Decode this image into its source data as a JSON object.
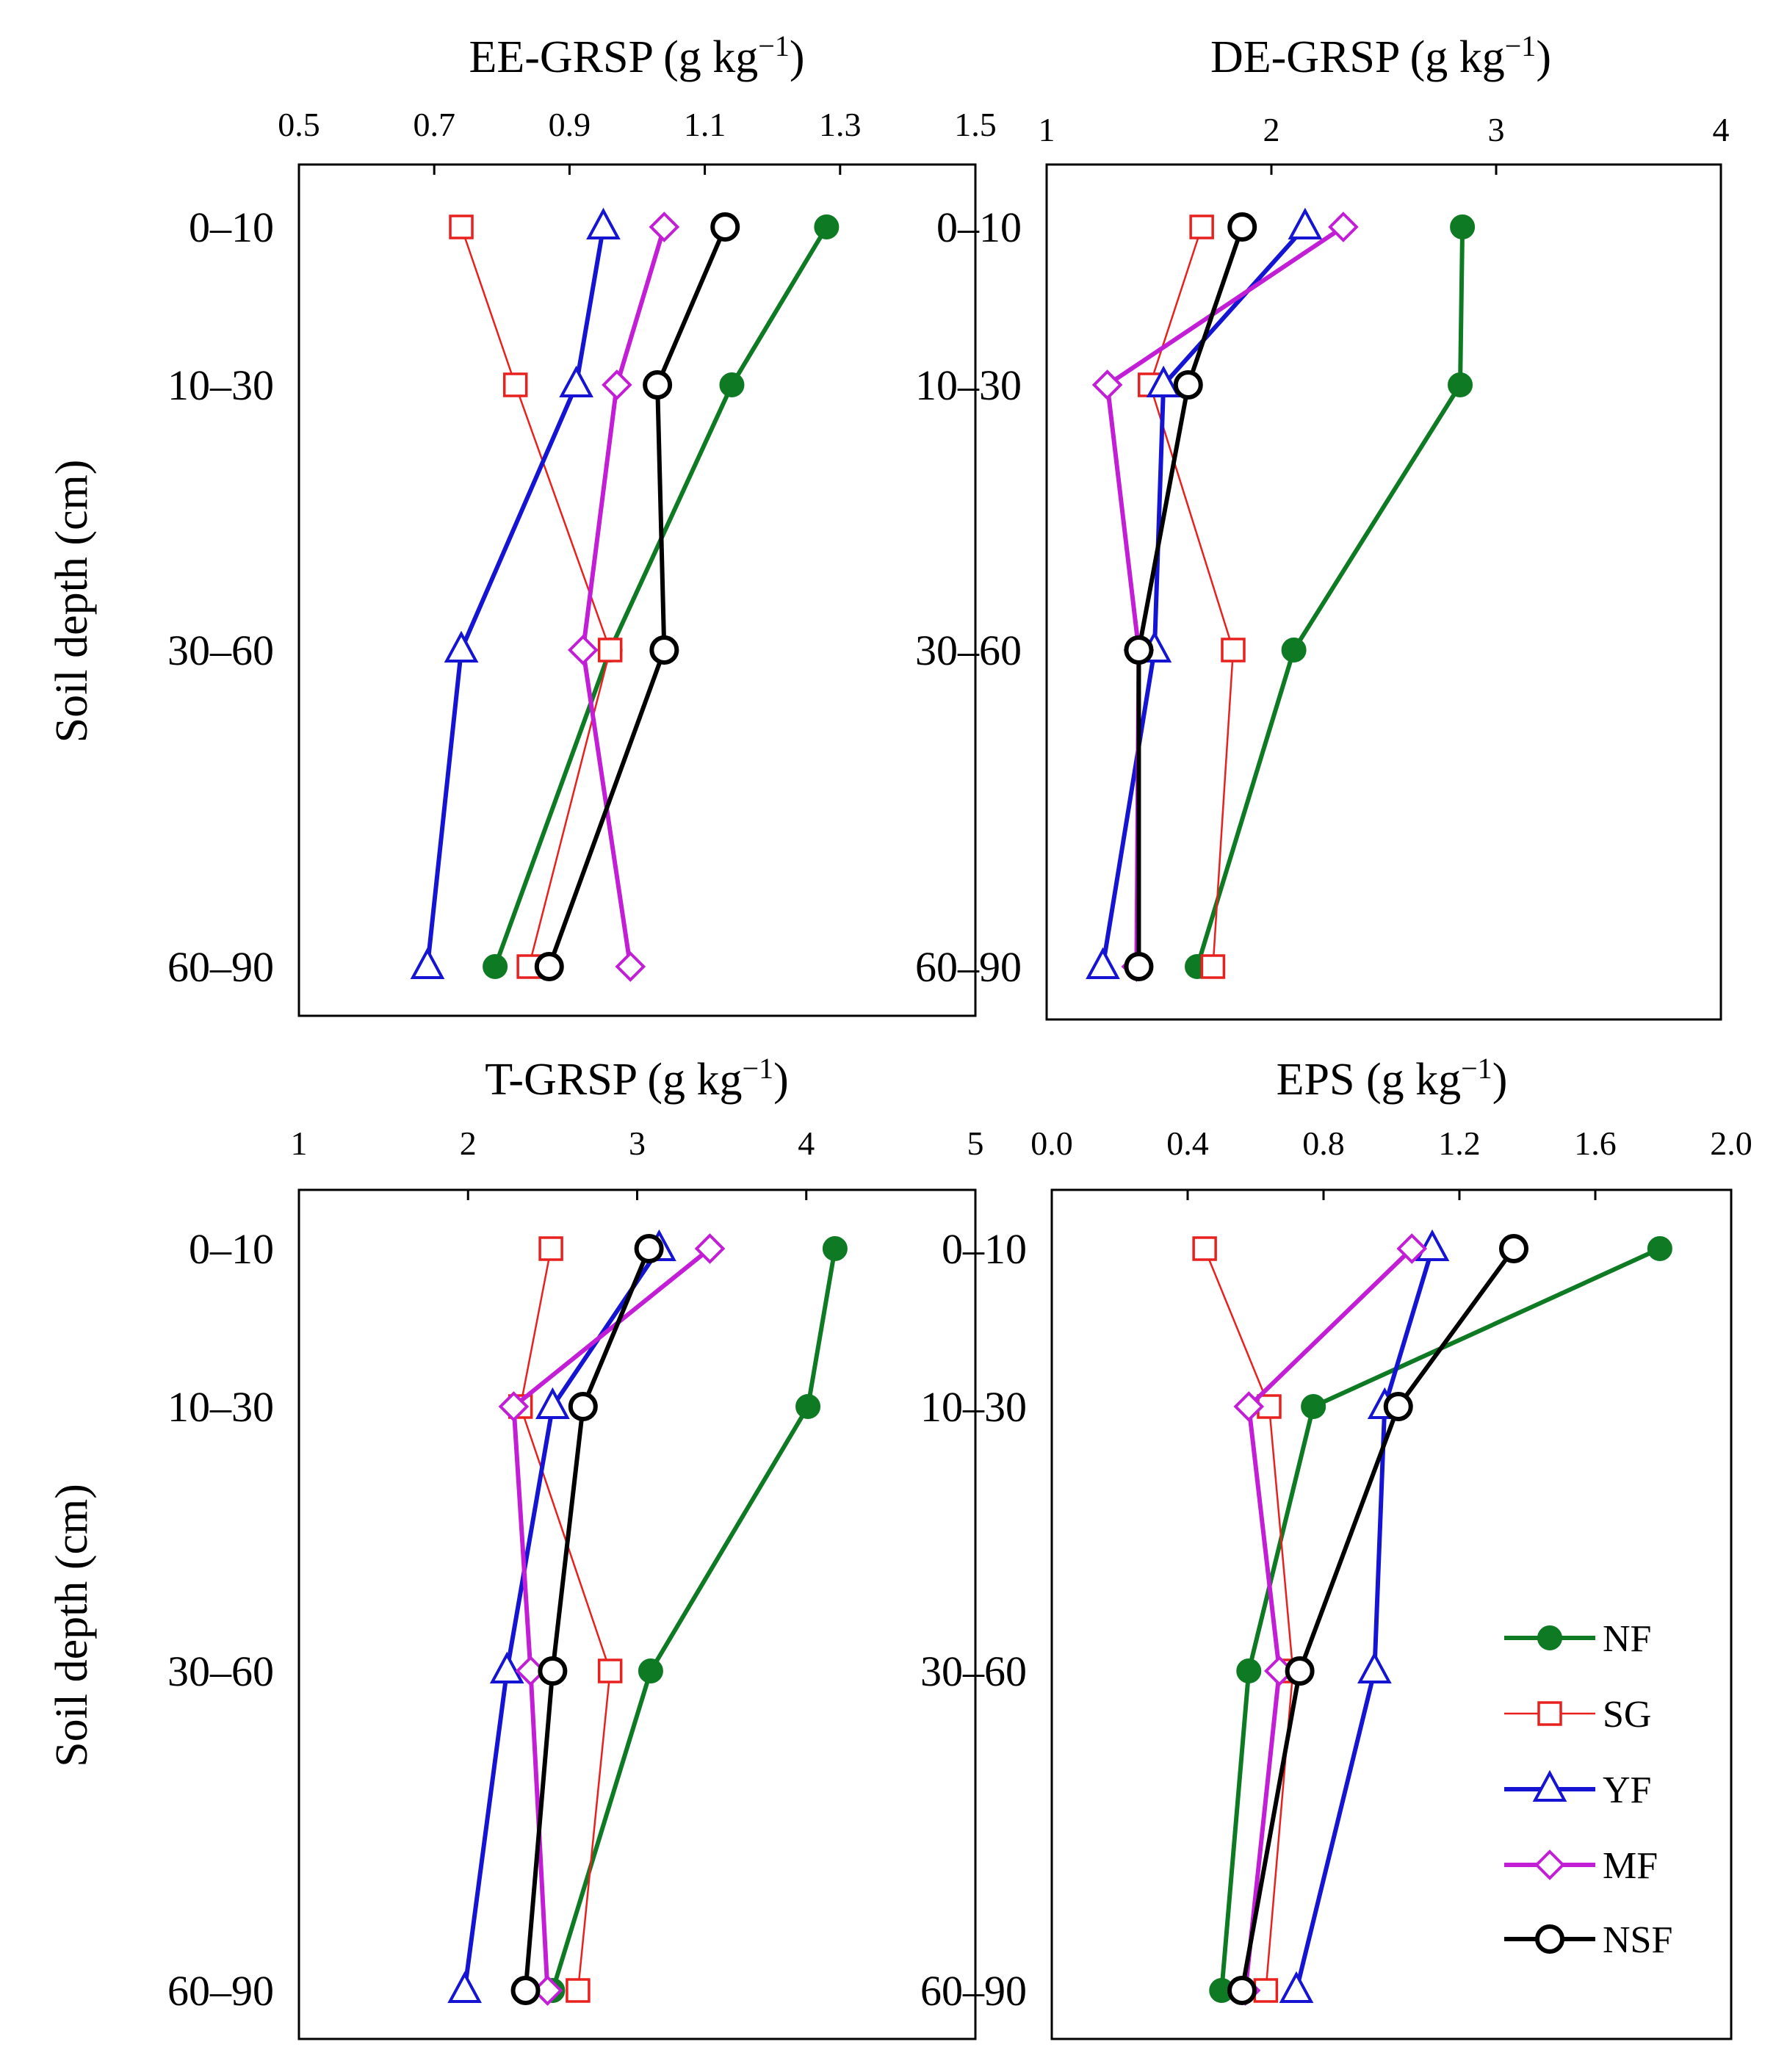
{
  "chart_data": [
    {
      "type": "line",
      "id": "ee",
      "title": "EE-GRSP  (g kg",
      "title_sup": "−1",
      "title_close": ")",
      "xlim": [
        0.5,
        1.5
      ],
      "xticks": [
        "0.5",
        "0.7",
        "0.9",
        "1.1",
        "1.3",
        "1.5"
      ],
      "ylabel": "Soil  depth  (cm)",
      "categories": [
        "0–10",
        "10–30",
        "30–60",
        "60–90"
      ],
      "series": [
        {
          "name": "NF",
          "values": [
            1.28,
            1.14,
            0.96,
            0.79
          ]
        },
        {
          "name": "SG",
          "values": [
            0.74,
            0.82,
            0.96,
            0.84
          ]
        },
        {
          "name": "YF",
          "values": [
            0.95,
            0.91,
            0.74,
            0.69
          ]
        },
        {
          "name": "MF",
          "values": [
            1.04,
            0.97,
            0.92,
            0.99
          ]
        },
        {
          "name": "NSF",
          "values": [
            1.13,
            1.03,
            1.04,
            0.87
          ]
        }
      ]
    },
    {
      "type": "line",
      "id": "de",
      "title": "DE-GRSP  (g kg",
      "title_sup": "−1",
      "title_close": ")",
      "xlim": [
        1,
        4
      ],
      "xticks": [
        "1",
        "2",
        "3",
        "4"
      ],
      "ylabel": "",
      "categories": [
        "0–10",
        "10–30",
        "30–60",
        "60–90"
      ],
      "series": [
        {
          "name": "NF",
          "values": [
            2.85,
            2.84,
            2.1,
            1.67
          ]
        },
        {
          "name": "SG",
          "values": [
            1.69,
            1.46,
            1.83,
            1.74
          ]
        },
        {
          "name": "YF",
          "values": [
            2.15,
            1.52,
            1.48,
            1.25
          ]
        },
        {
          "name": "MF",
          "values": [
            2.32,
            1.27,
            1.41,
            1.4
          ]
        },
        {
          "name": "NSF",
          "values": [
            1.87,
            1.63,
            1.41,
            1.41
          ]
        }
      ]
    },
    {
      "type": "line",
      "id": "tg",
      "title": "T-GRSP  (g kg",
      "title_sup": "−1",
      "title_close": ")",
      "xlim": [
        1,
        5
      ],
      "xticks": [
        "1",
        "2",
        "3",
        "4",
        "5"
      ],
      "ylabel": "Soil  depth  (cm)",
      "categories": [
        "0–10",
        "10–30",
        "30–60",
        "60–90"
      ],
      "series": [
        {
          "name": "NF",
          "values": [
            4.17,
            4.01,
            3.08,
            2.5
          ]
        },
        {
          "name": "SG",
          "values": [
            2.49,
            2.31,
            2.84,
            2.65
          ]
        },
        {
          "name": "YF",
          "values": [
            3.13,
            2.5,
            2.23,
            1.98
          ]
        },
        {
          "name": "MF",
          "values": [
            3.43,
            2.27,
            2.37,
            2.47
          ]
        },
        {
          "name": "NSF",
          "values": [
            3.07,
            2.68,
            2.5,
            2.34
          ]
        }
      ]
    },
    {
      "type": "line",
      "id": "eps",
      "title": "EPS (g kg",
      "title_sup": "−1",
      "title_close": ")",
      "xlim": [
        0.0,
        2.0
      ],
      "xticks": [
        "0.0",
        "0.4",
        "0.8",
        "1.2",
        "1.6",
        "2.0"
      ],
      "ylabel": "",
      "categories": [
        "0–10",
        "10–30",
        "30–60",
        "60–90"
      ],
      "series": [
        {
          "name": "NF",
          "values": [
            1.79,
            0.77,
            0.58,
            0.5
          ]
        },
        {
          "name": "SG",
          "values": [
            0.45,
            0.64,
            0.71,
            0.63
          ]
        },
        {
          "name": "YF",
          "values": [
            1.12,
            0.98,
            0.95,
            0.72
          ]
        },
        {
          "name": "MF",
          "values": [
            1.06,
            0.58,
            0.67,
            0.57
          ]
        },
        {
          "name": "NSF",
          "values": [
            1.36,
            1.02,
            0.73,
            0.56
          ]
        }
      ]
    }
  ],
  "legend": [
    "NF",
    "SG",
    "YF",
    "MF",
    "NSF"
  ],
  "styles": {
    "NF": {
      "color": "#0e7a23",
      "marker": "circle-filled"
    },
    "SG": {
      "color": "#e8201e",
      "marker": "square-open"
    },
    "YF": {
      "color": "#1414d2",
      "marker": "triangle-open"
    },
    "MF": {
      "color": "#c21ed6",
      "marker": "diamond-open"
    },
    "NSF": {
      "color": "#000000",
      "marker": "circle-open"
    }
  }
}
